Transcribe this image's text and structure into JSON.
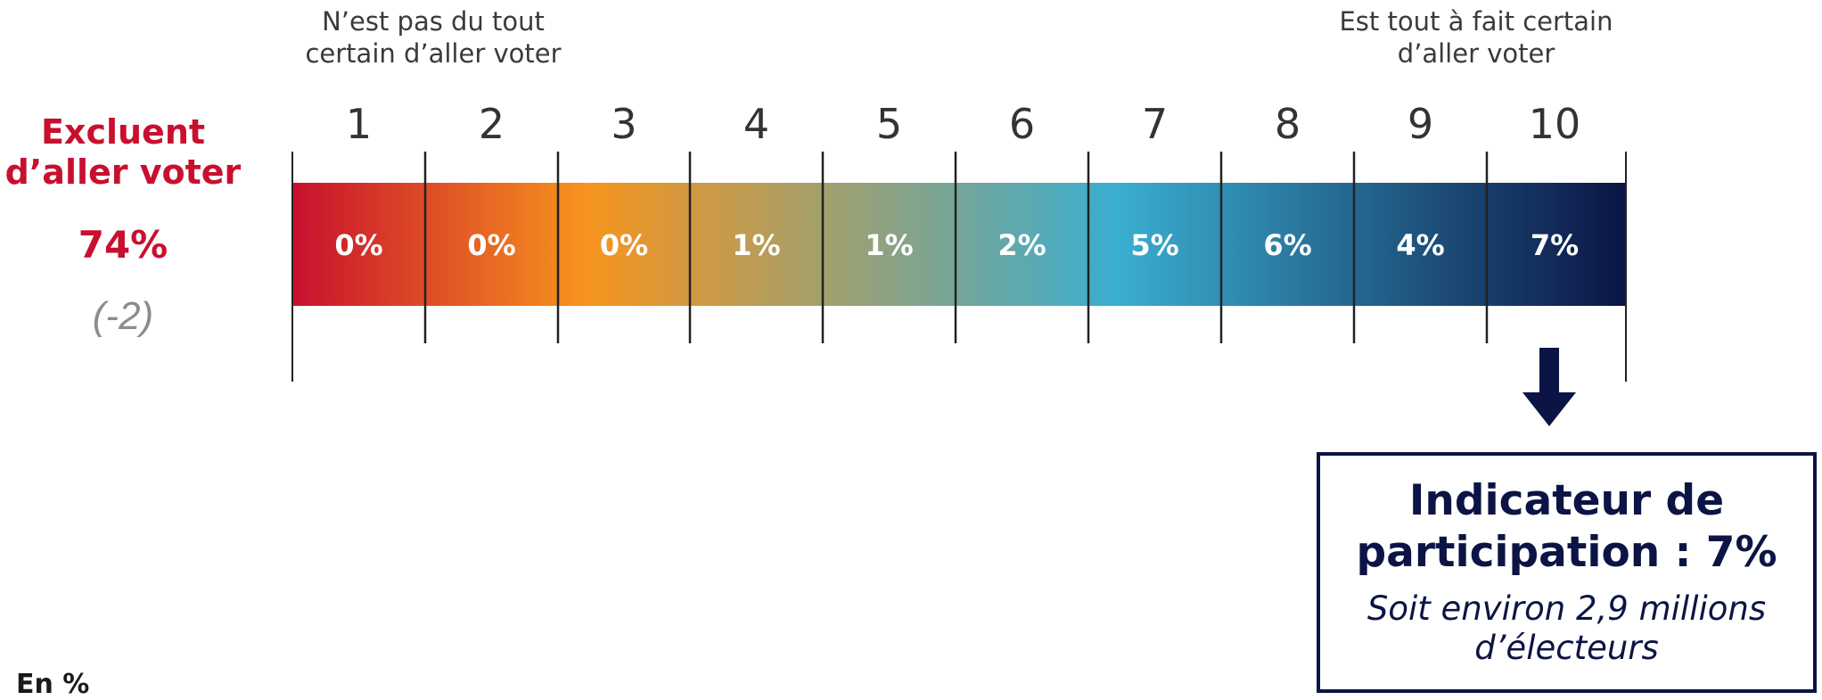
{
  "chart_data": {
    "type": "bar",
    "categories": [
      "1",
      "2",
      "3",
      "4",
      "5",
      "6",
      "7",
      "8",
      "9",
      "10"
    ],
    "values": [
      0,
      0,
      0,
      1,
      1,
      2,
      5,
      6,
      4,
      7
    ],
    "value_labels": [
      "0%",
      "0%",
      "0%",
      "1%",
      "1%",
      "2%",
      "5%",
      "6%",
      "4%",
      "7%"
    ],
    "scale_low_label": "N’est pas du tout\ncertain d’aller voter",
    "scale_high_label": "Est tout à fait certain\nd’aller voter",
    "gradient_colors": [
      "#c8102e",
      "#f7941d",
      "#3aaed0",
      "#0b1444"
    ]
  },
  "exclude": {
    "title": "Excluent\nd’aller voter",
    "value": "74%",
    "change": "(-2)"
  },
  "indicator": {
    "title": "Indicateur de\nparticipation : 7%",
    "subtitle": "Soit environ 2,9 millions\nd’électeurs"
  },
  "unit_label": "En %"
}
